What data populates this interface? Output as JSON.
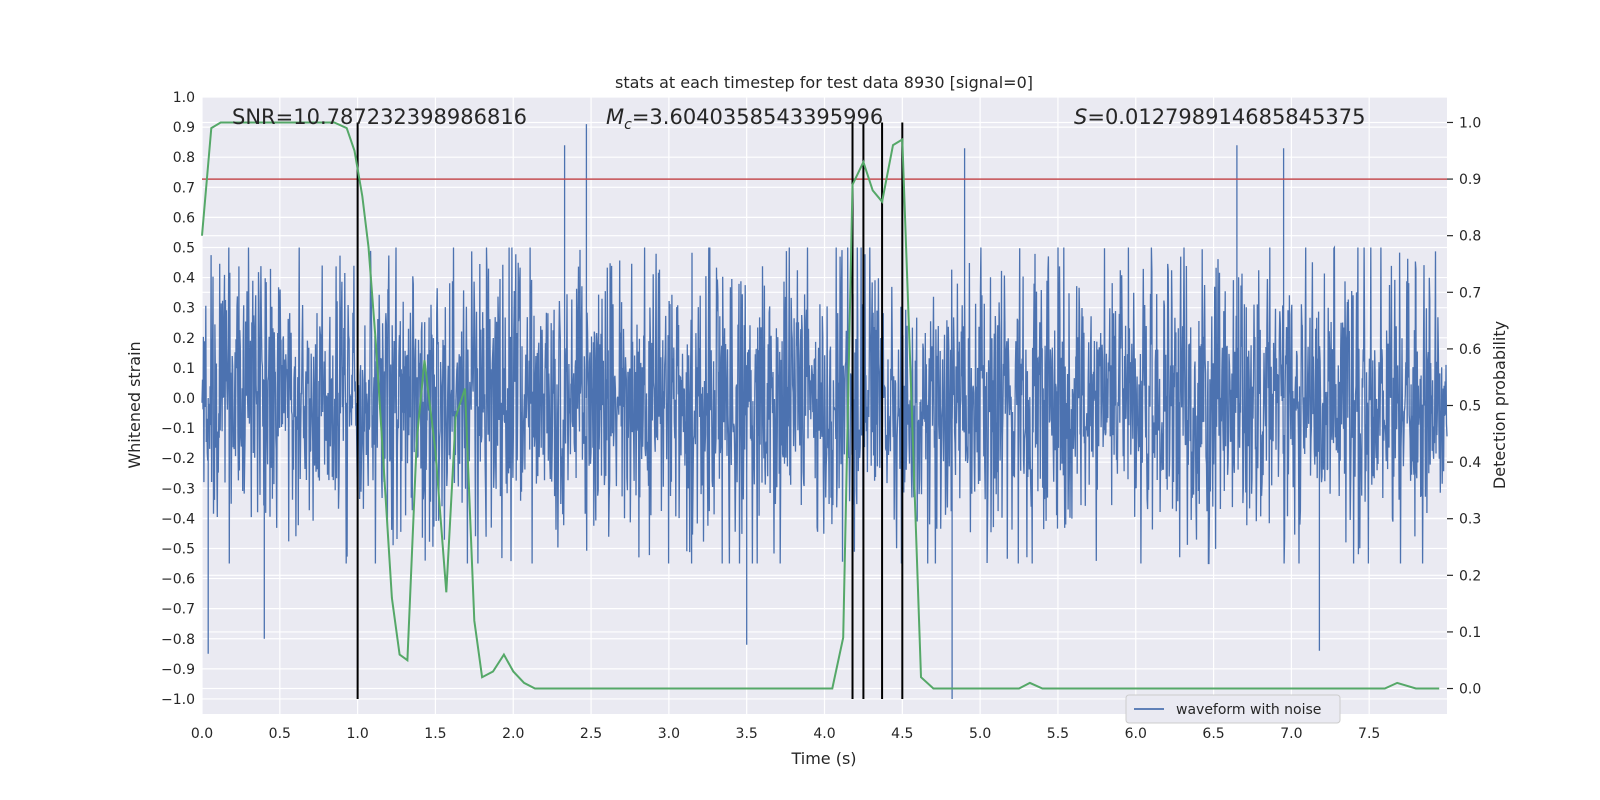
{
  "chart_data": {
    "type": "line",
    "title": "stats at each timestep for test data 8930 [signal=0]",
    "xlabel": "Time (s)",
    "ylabel": "Whitened strain",
    "ylabel_right": "Detection probability",
    "xlim": [
      0,
      8
    ],
    "ylim": [
      -1.05,
      1.0
    ],
    "ylim_right": [
      -0.045,
      1.045
    ],
    "x_ticks": [
      0.0,
      0.5,
      1.0,
      1.5,
      2.0,
      2.5,
      3.0,
      3.5,
      4.0,
      4.5,
      5.0,
      5.5,
      6.0,
      6.5,
      7.0,
      7.5
    ],
    "x_tick_labels": [
      "0.0",
      "0.5",
      "1.0",
      "1.5",
      "2.0",
      "2.5",
      "3.0",
      "3.5",
      "4.0",
      "4.5",
      "5.0",
      "5.5",
      "6.0",
      "6.5",
      "7.0",
      "7.5"
    ],
    "y_ticks": [
      1.0,
      0.9,
      0.8,
      0.7,
      0.6,
      0.5,
      0.4,
      0.3,
      0.2,
      0.1,
      0.0,
      -0.1,
      -0.2,
      -0.3,
      -0.4,
      -0.5,
      -0.6,
      -0.7,
      -0.8,
      -0.9,
      -1.0
    ],
    "y_tick_labels": [
      "1.0",
      "0.9",
      "0.8",
      "0.7",
      "0.6",
      "0.5",
      "0.4",
      "0.3",
      "0.2",
      "0.1",
      "0.0",
      "−0.1",
      "−0.2",
      "−0.3",
      "−0.4",
      "−0.5",
      "−0.6",
      "−0.7",
      "−0.8",
      "−0.9",
      "−1.0"
    ],
    "y_right_ticks": [
      1.0,
      0.9,
      0.8,
      0.7,
      0.6,
      0.5,
      0.4,
      0.3,
      0.2,
      0.1,
      0.0
    ],
    "y_right_tick_labels": [
      "1.0",
      "0.9",
      "0.8",
      "0.7",
      "0.6",
      "0.5",
      "0.4",
      "0.3",
      "0.2",
      "0.1",
      "0.0"
    ],
    "annotations": {
      "snr": "SNR=10.787232398986816",
      "mc_symbol": "M",
      "mc_sub": "c",
      "mc_value": "=3.6040358543395996",
      "s_symbol": "S",
      "s_value": "=0.012798914685845375"
    },
    "threshold": {
      "value": 0.9,
      "axis": "right",
      "color": "#c44e52"
    },
    "vertical_markers": [
      1.0,
      4.18,
      4.25,
      4.37,
      4.5
    ],
    "series": [
      {
        "name": "waveform with noise",
        "color": "#4c72b0",
        "kind": "noise",
        "envelope": {
          "core_abs": 0.2,
          "typical_max": 0.5,
          "typical_min": -0.55,
          "extreme_max": 0.91,
          "extreme_min": -1.0
        },
        "notable_spikes": [
          [
            0.04,
            -0.85
          ],
          [
            0.4,
            -0.8
          ],
          [
            2.33,
            0.84
          ],
          [
            2.47,
            0.91
          ],
          [
            3.5,
            -0.82
          ],
          [
            4.82,
            -1.0
          ],
          [
            4.9,
            0.83
          ],
          [
            6.65,
            0.84
          ],
          [
            6.95,
            0.83
          ],
          [
            7.18,
            -0.84
          ]
        ]
      },
      {
        "name": "detection probability",
        "color": "#55a868",
        "axis": "right",
        "x": [
          0.0,
          0.06,
          0.12,
          0.3,
          0.5,
          0.7,
          0.85,
          0.93,
          0.98,
          1.03,
          1.07,
          1.12,
          1.17,
          1.22,
          1.27,
          1.32,
          1.38,
          1.43,
          1.5,
          1.57,
          1.63,
          1.69,
          1.75,
          1.8,
          1.87,
          1.94,
          2.0,
          2.07,
          2.14,
          2.5,
          2.8,
          3.0,
          3.3,
          3.5,
          3.8,
          4.05,
          4.12,
          4.18,
          4.25,
          4.31,
          4.37,
          4.44,
          4.5,
          4.55,
          4.62,
          4.7,
          5.0,
          5.25,
          5.32,
          5.4,
          5.7,
          5.8,
          6.0,
          6.2,
          6.6,
          7.0,
          7.3,
          7.6,
          7.68,
          7.8,
          7.95
        ],
        "values": [
          0.8,
          0.99,
          1.0,
          1.0,
          1.0,
          1.0,
          1.0,
          0.99,
          0.95,
          0.87,
          0.78,
          0.6,
          0.38,
          0.16,
          0.06,
          0.05,
          0.44,
          0.58,
          0.42,
          0.17,
          0.48,
          0.53,
          0.12,
          0.02,
          0.03,
          0.06,
          0.03,
          0.01,
          0.0,
          0.0,
          0.0,
          0.0,
          0.0,
          0.0,
          0.0,
          0.0,
          0.09,
          0.89,
          0.93,
          0.88,
          0.86,
          0.96,
          0.97,
          0.58,
          0.02,
          0.0,
          0.0,
          0.0,
          0.01,
          0.0,
          0.0,
          0.0,
          0.0,
          0.0,
          0.0,
          0.0,
          0.0,
          0.0,
          0.01,
          0.0,
          0.0
        ]
      }
    ],
    "legend": {
      "entries": [
        "waveform with noise"
      ],
      "placement": "lower-right"
    },
    "grid": true
  }
}
